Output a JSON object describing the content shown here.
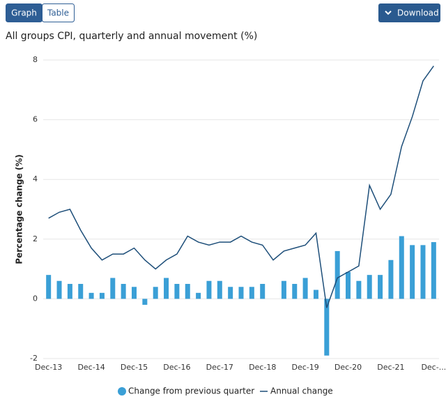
{
  "tabs": [
    "Graph",
    "Table"
  ],
  "download": "Download",
  "chart_data": {
    "type": "combo",
    "title": "All groups CPI, quarterly and annual movement (%)",
    "y_label": "Percentage change (%)",
    "categories": [
      "Dec-13",
      null,
      null,
      null,
      "Dec-14",
      null,
      null,
      null,
      "Dec-15",
      null,
      null,
      null,
      "Dec-16",
      null,
      null,
      null,
      "Dec-17",
      null,
      null,
      null,
      "Dec-18",
      null,
      null,
      null,
      "Dec-19",
      null,
      null,
      null,
      "Dec-20",
      null,
      null,
      null,
      "Dec-21",
      null,
      null,
      null,
      "Dec-..."
    ],
    "series": [
      {
        "name": "Change from previous quarter",
        "type": "bar",
        "color": "#3a9fd6",
        "values": [
          0.8,
          0.6,
          0.5,
          0.5,
          0.2,
          0.2,
          0.7,
          0.5,
          0.4,
          -0.2,
          0.4,
          0.7,
          0.5,
          0.5,
          0.2,
          0.6,
          0.6,
          0.4,
          0.4,
          0.4,
          0.5,
          0.0,
          0.6,
          0.5,
          0.7,
          0.3,
          -1.9,
          1.6,
          0.9,
          0.6,
          0.8,
          0.8,
          1.3,
          2.1,
          1.8,
          1.8,
          1.9
        ]
      },
      {
        "name": "Annual change",
        "type": "line",
        "color": "#1d4e79",
        "values": [
          2.7,
          2.9,
          3.0,
          2.3,
          1.7,
          1.3,
          1.5,
          1.5,
          1.7,
          1.3,
          1.0,
          1.3,
          1.5,
          2.1,
          1.9,
          1.8,
          1.9,
          1.9,
          2.1,
          1.9,
          1.8,
          1.3,
          1.6,
          1.7,
          1.8,
          2.2,
          -0.3,
          0.7,
          0.9,
          1.1,
          3.8,
          3.0,
          3.5,
          5.1,
          6.1,
          7.3,
          7.8
        ]
      }
    ],
    "ylim": [
      -2,
      8
    ],
    "yticks": [
      -2,
      0,
      2,
      4,
      6,
      8
    ],
    "grid": true
  }
}
